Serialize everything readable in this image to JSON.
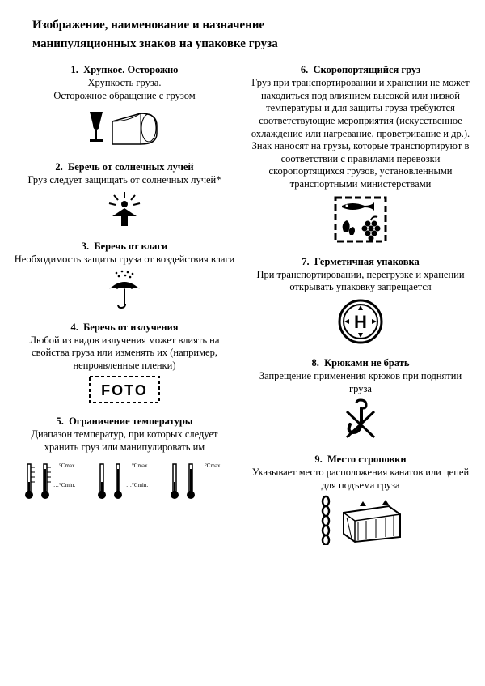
{
  "title_line1": "Изображение, наименование и назначение",
  "title_line2": "манипуляционных знаков на упаковке груза",
  "left": [
    {
      "num": "1.",
      "title": "Хрупкое. Осторожно",
      "desc": "Хрупкость груза.\nОсторожное обращение с грузом"
    },
    {
      "num": "2.",
      "title": "Беречь от солнечных лучей",
      "desc": "Груз следует защищать от солнечных лучей*"
    },
    {
      "num": "3.",
      "title": "Беречь от влаги",
      "desc": "Необходимость защиты груза от воздействия влаги"
    },
    {
      "num": "4.",
      "title": "Беречь от излучения",
      "desc": "Любой из видов излучения может влиять на свойства груза или изменять их (например, непроявленные пленки)"
    },
    {
      "num": "5.",
      "title": "Ограничение температуры",
      "desc": "Диапазон температур, при которых следует хранить груз или манипулировать им"
    }
  ],
  "right": [
    {
      "num": "6.",
      "title": "Скоропортящийся груз",
      "desc": "Груз при транспортировании и хранении не может находиться под влиянием высокой или низкой температуры и для защиты груза требуются соответствующие мероприятия (искусственное охлаждение или нагревание, проветривание и др.). Знак наносят на грузы, которые транспортируют в соответствии с правилами перевозки скоропортящихся грузов, установленными транспортными министерствами"
    },
    {
      "num": "7.",
      "title": "Герметичная упаковка",
      "desc": "При транспортировании, перегрузке и хранении открывать упаковку запрещается"
    },
    {
      "num": "8.",
      "title": "Крюками не брать",
      "desc": "Запрещение применения крюков при поднятии груза"
    },
    {
      "num": "9.",
      "title": "Место строповки",
      "desc": "Указывает место расположения канатов или цепей для подъема груза"
    }
  ],
  "colors": {
    "fg": "#000000",
    "bg": "#ffffff"
  },
  "foto_label": "FOTO",
  "temp_labels": {
    "cmax": "…°Cmax.",
    "cmin": "…°Cmin."
  }
}
